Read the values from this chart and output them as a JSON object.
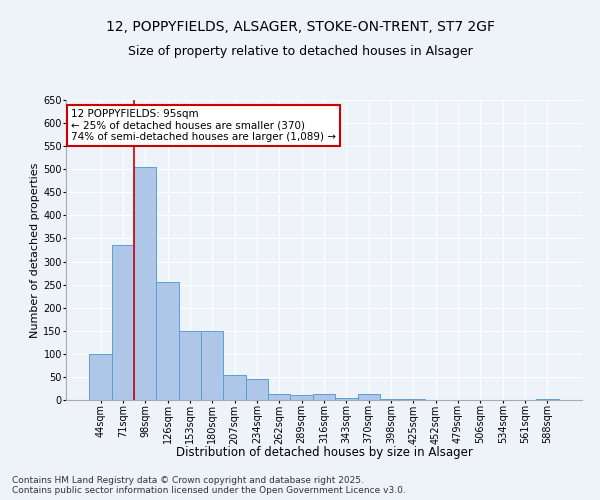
{
  "title_line1": "12, POPPYFIELDS, ALSAGER, STOKE-ON-TRENT, ST7 2GF",
  "title_line2": "Size of property relative to detached houses in Alsager",
  "xlabel": "Distribution of detached houses by size in Alsager",
  "ylabel": "Number of detached properties",
  "categories": [
    "44sqm",
    "71sqm",
    "98sqm",
    "126sqm",
    "153sqm",
    "180sqm",
    "207sqm",
    "234sqm",
    "262sqm",
    "289sqm",
    "316sqm",
    "343sqm",
    "370sqm",
    "398sqm",
    "425sqm",
    "452sqm",
    "479sqm",
    "506sqm",
    "534sqm",
    "561sqm",
    "588sqm"
  ],
  "values": [
    100,
    335,
    505,
    255,
    150,
    150,
    55,
    45,
    12,
    10,
    12,
    5,
    12,
    3,
    2,
    1,
    1,
    1,
    1,
    1,
    3
  ],
  "bar_color": "#aec6e8",
  "bar_edge_color": "#5a9fd4",
  "red_line_index": 2,
  "annotation_text": "12 POPPYFIELDS: 95sqm\n← 25% of detached houses are smaller (370)\n74% of semi-detached houses are larger (1,089) →",
  "annotation_box_color": "#ffffff",
  "annotation_box_edge_color": "#cc0000",
  "red_line_color": "#cc0000",
  "ylim": [
    0,
    650
  ],
  "yticks": [
    0,
    50,
    100,
    150,
    200,
    250,
    300,
    350,
    400,
    450,
    500,
    550,
    600,
    650
  ],
  "background_color": "#eef2f9",
  "grid_color": "#ffffff",
  "footer_line1": "Contains HM Land Registry data © Crown copyright and database right 2025.",
  "footer_line2": "Contains public sector information licensed under the Open Government Licence v3.0.",
  "title_fontsize": 10,
  "subtitle_fontsize": 9,
  "xlabel_fontsize": 8.5,
  "ylabel_fontsize": 8,
  "tick_fontsize": 7,
  "footer_fontsize": 6.5,
  "annotation_fontsize": 7.5
}
